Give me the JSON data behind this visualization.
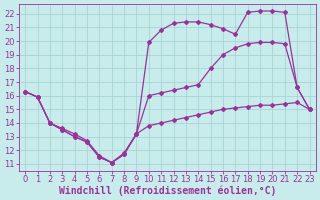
{
  "background_color": "#c8ecec",
  "grid_color": "#aad4d4",
  "line_color": "#993399",
  "xlabel": "Windchill (Refroidissement éolien,°C)",
  "xlabel_fontsize": 7,
  "tick_fontsize": 6,
  "ylabel_values": [
    11,
    12,
    13,
    14,
    15,
    16,
    17,
    18,
    19,
    20,
    21,
    22
  ],
  "xlim": [
    -0.5,
    23.5
  ],
  "ylim": [
    10.5,
    22.7
  ],
  "line1_x": [
    0,
    1,
    2,
    3,
    4,
    5,
    6,
    7,
    8,
    9,
    10,
    11,
    12,
    13,
    14,
    15,
    16,
    17,
    18,
    19,
    20,
    21,
    22,
    23
  ],
  "line1_y": [
    16.3,
    15.9,
    14.0,
    13.6,
    13.2,
    12.7,
    11.6,
    11.1,
    11.8,
    13.2,
    13.8,
    14.0,
    14.2,
    14.4,
    14.6,
    14.8,
    15.0,
    15.1,
    15.2,
    15.3,
    15.3,
    15.4,
    15.5,
    15.0
  ],
  "line2_x": [
    0,
    1,
    2,
    3,
    4,
    5,
    6,
    7,
    8,
    9,
    10,
    11,
    12,
    13,
    14,
    15,
    16,
    17,
    18,
    19,
    20,
    21,
    22,
    23
  ],
  "line2_y": [
    16.3,
    15.9,
    14.0,
    13.5,
    13.0,
    12.6,
    11.5,
    11.1,
    11.7,
    13.2,
    16.0,
    16.2,
    16.4,
    16.6,
    16.8,
    18.0,
    19.0,
    19.5,
    19.8,
    19.9,
    19.9,
    19.8,
    16.6,
    15.0
  ],
  "line3_x": [
    0,
    1,
    2,
    3,
    4,
    5,
    6,
    7,
    8,
    9,
    10,
    11,
    12,
    13,
    14,
    15,
    16,
    17,
    18,
    19,
    20,
    21,
    22,
    23
  ],
  "line3_y": [
    16.3,
    15.9,
    14.0,
    13.5,
    13.0,
    12.6,
    11.5,
    11.1,
    11.7,
    13.2,
    19.9,
    20.8,
    21.3,
    21.4,
    21.4,
    21.2,
    20.9,
    20.5,
    22.1,
    22.2,
    22.2,
    22.1,
    16.6,
    15.0
  ]
}
